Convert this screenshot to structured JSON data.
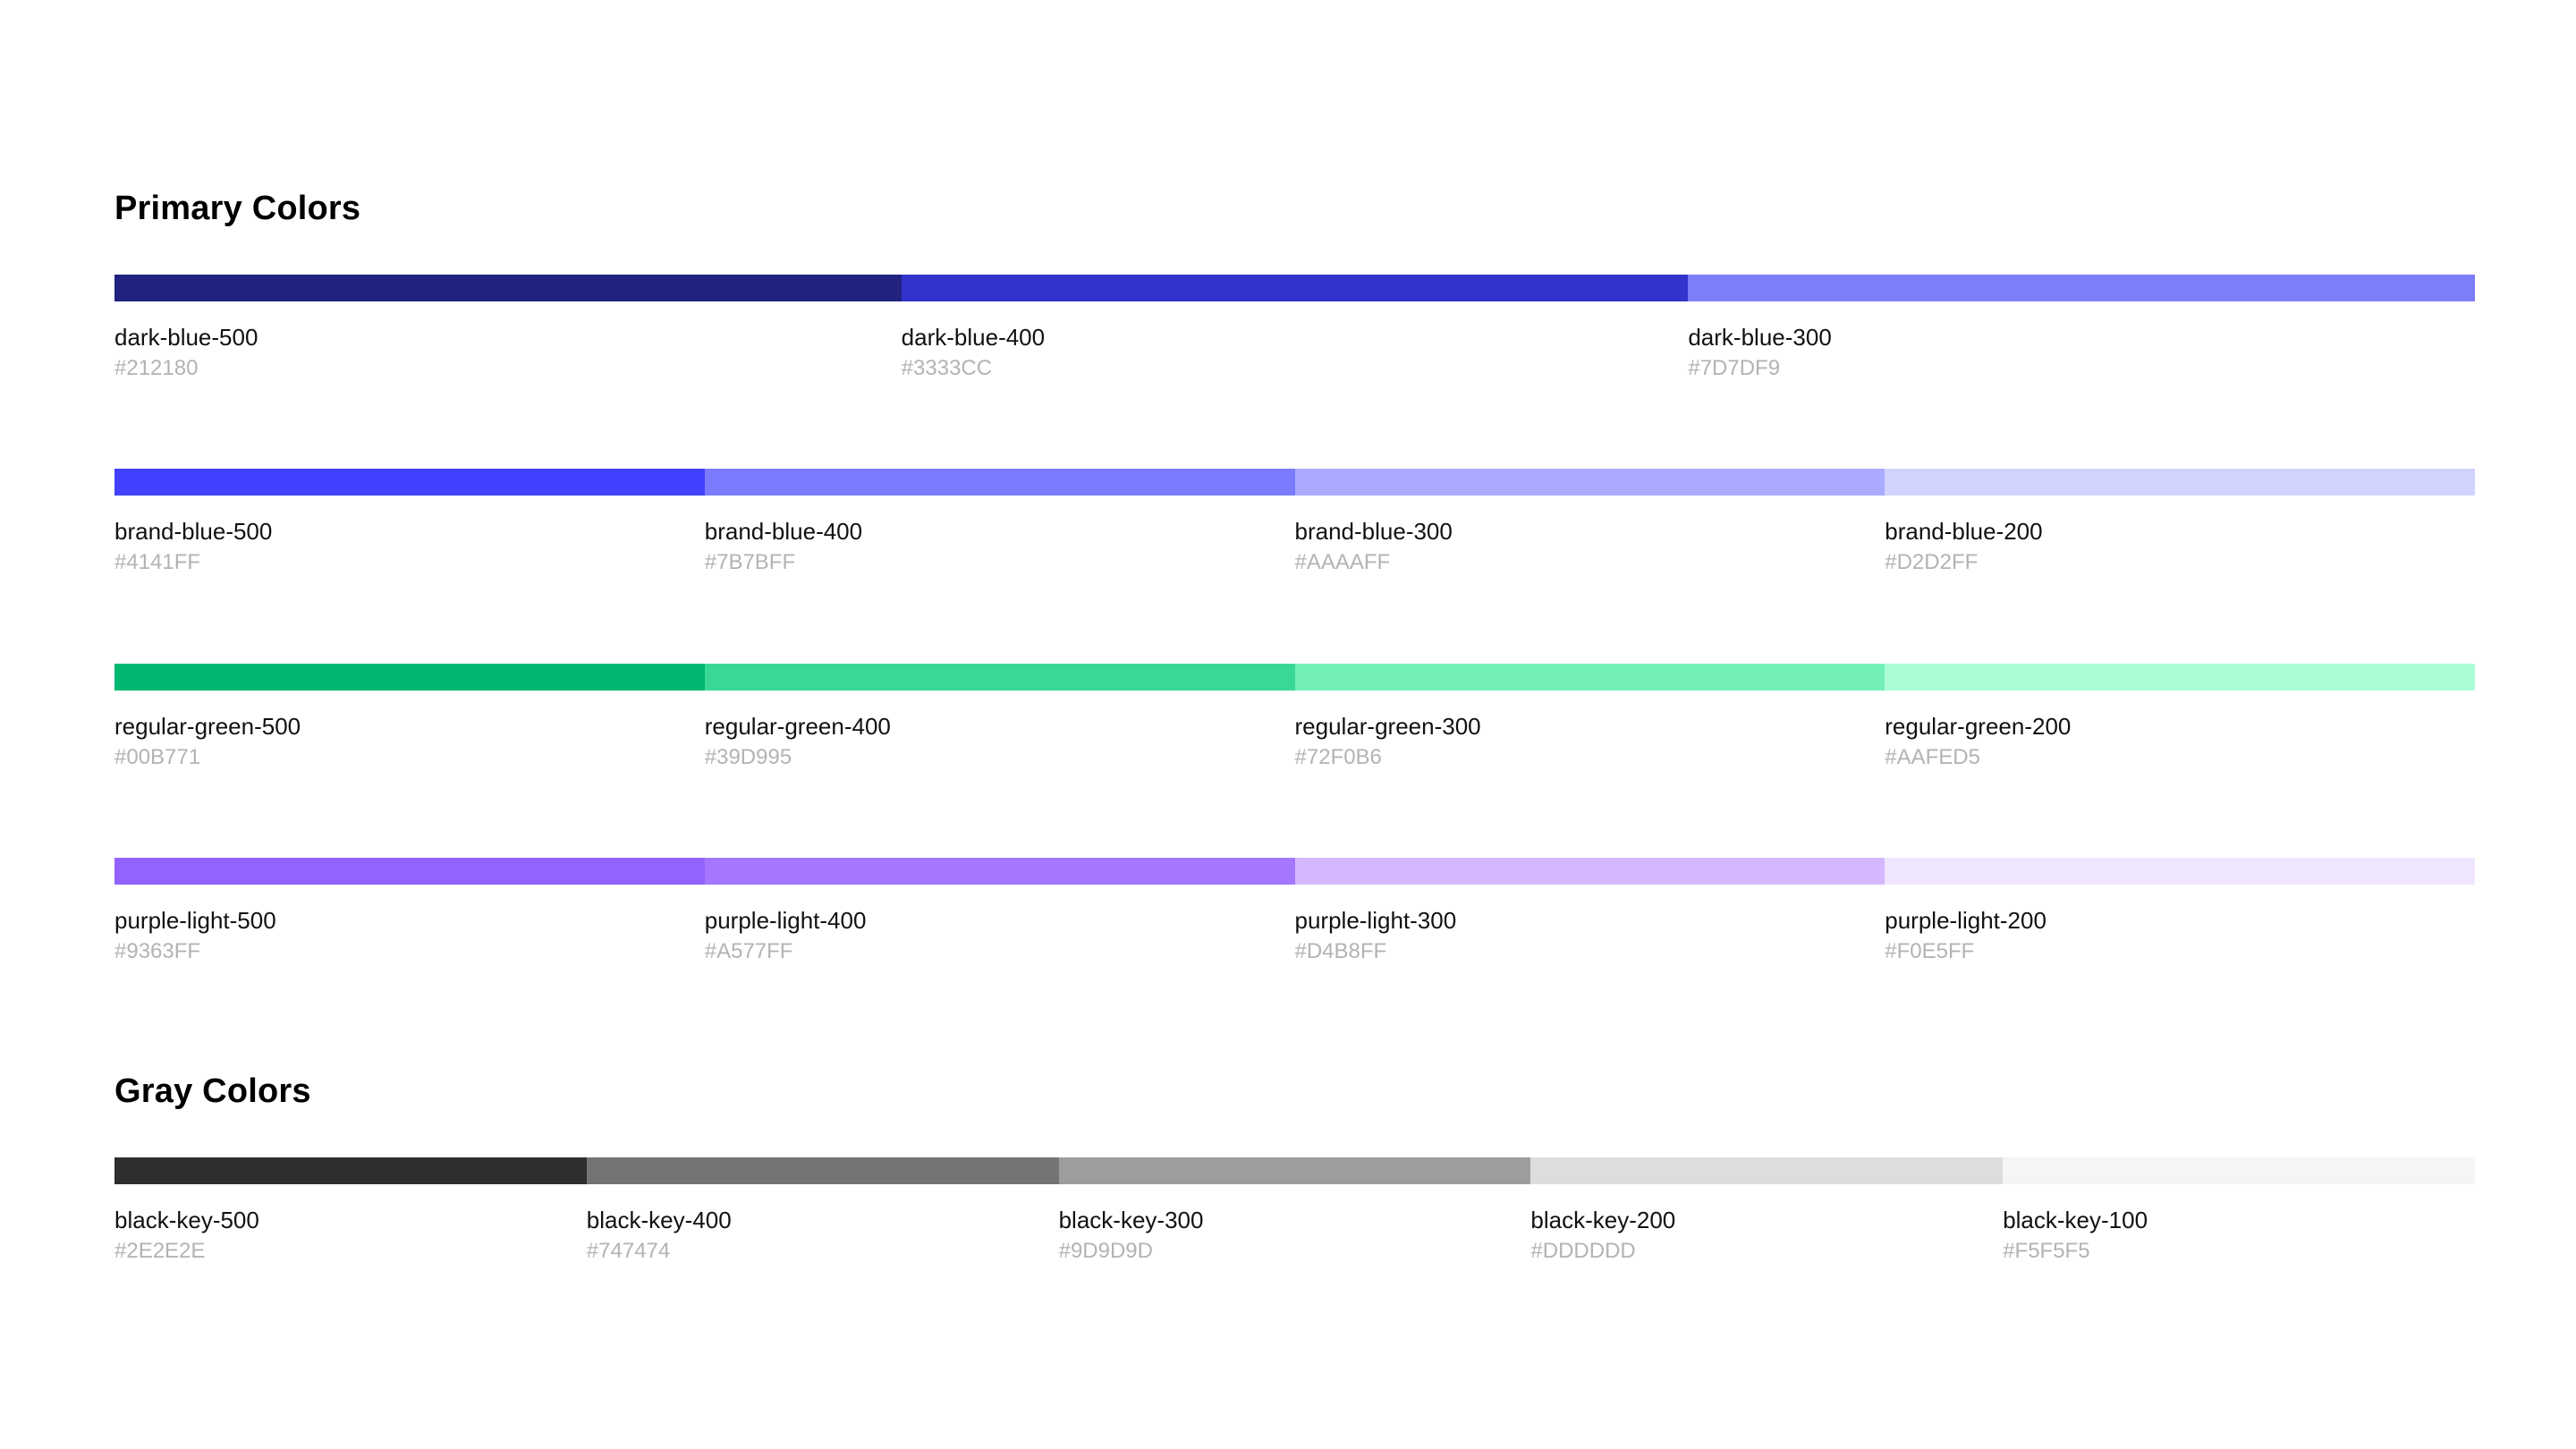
{
  "primary": {
    "title": "Primary Colors",
    "rows": [
      {
        "swatches": [
          {
            "name": "dark-blue-500",
            "hex": "#212180"
          },
          {
            "name": "dark-blue-400",
            "hex": "#3333CC"
          },
          {
            "name": "dark-blue-300",
            "hex": "#7D7DF9"
          }
        ]
      },
      {
        "swatches": [
          {
            "name": "brand-blue-500",
            "hex": "#4141FF"
          },
          {
            "name": "brand-blue-400",
            "hex": "#7B7BFF"
          },
          {
            "name": "brand-blue-300",
            "hex": "#AAAAFF"
          },
          {
            "name": "brand-blue-200",
            "hex": "#D2D2FF"
          }
        ]
      },
      {
        "swatches": [
          {
            "name": "regular-green-500",
            "hex": "#00B771"
          },
          {
            "name": "regular-green-400",
            "hex": "#39D995"
          },
          {
            "name": "regular-green-300",
            "hex": "#72F0B6"
          },
          {
            "name": "regular-green-200",
            "hex": "#AAFED5"
          }
        ]
      },
      {
        "swatches": [
          {
            "name": "purple-light-500",
            "hex": "#9363FF"
          },
          {
            "name": "purple-light-400",
            "hex": "#A577FF"
          },
          {
            "name": "purple-light-300",
            "hex": "#D4B8FF"
          },
          {
            "name": "purple-light-200",
            "hex": "#F0E5FF"
          }
        ]
      }
    ]
  },
  "gray": {
    "title": "Gray Colors",
    "rows": [
      {
        "swatches": [
          {
            "name": "black-key-500",
            "hex": "#2E2E2E"
          },
          {
            "name": "black-key-400",
            "hex": "#747474"
          },
          {
            "name": "black-key-300",
            "hex": "#9D9D9D"
          },
          {
            "name": "black-key-200",
            "hex": "#DDDDDD"
          },
          {
            "name": "black-key-100",
            "hex": "#F5F5F5"
          }
        ]
      }
    ]
  }
}
